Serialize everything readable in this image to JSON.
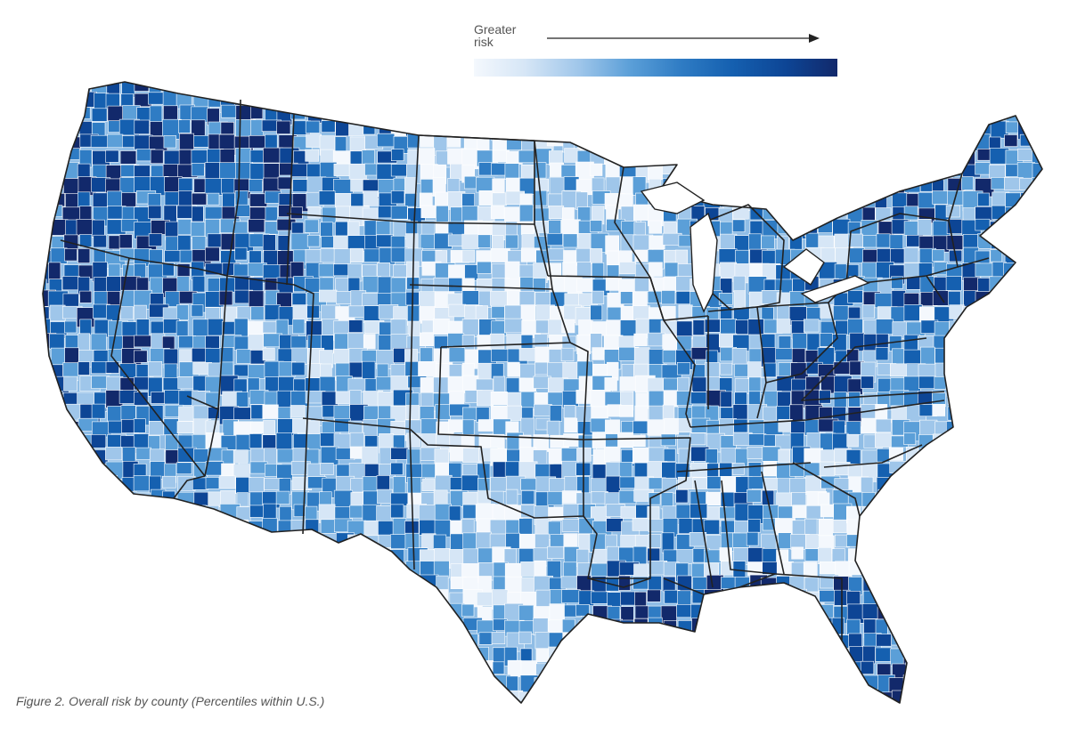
{
  "legend": {
    "label_line1": "Greater",
    "label_line2": "risk",
    "scale_colors": [
      "#f4f8fd",
      "#d6e6f6",
      "#9fc6ea",
      "#5b9fd8",
      "#2f7cc4",
      "#1560b0",
      "#0d4595",
      "#12296b"
    ]
  },
  "caption": "Figure 2. Overall risk by county (Percentiles within U.S.)",
  "colors": {
    "border_state": "#222222",
    "border_county": "#ffffff",
    "land_base": "#8fbde6"
  }
}
